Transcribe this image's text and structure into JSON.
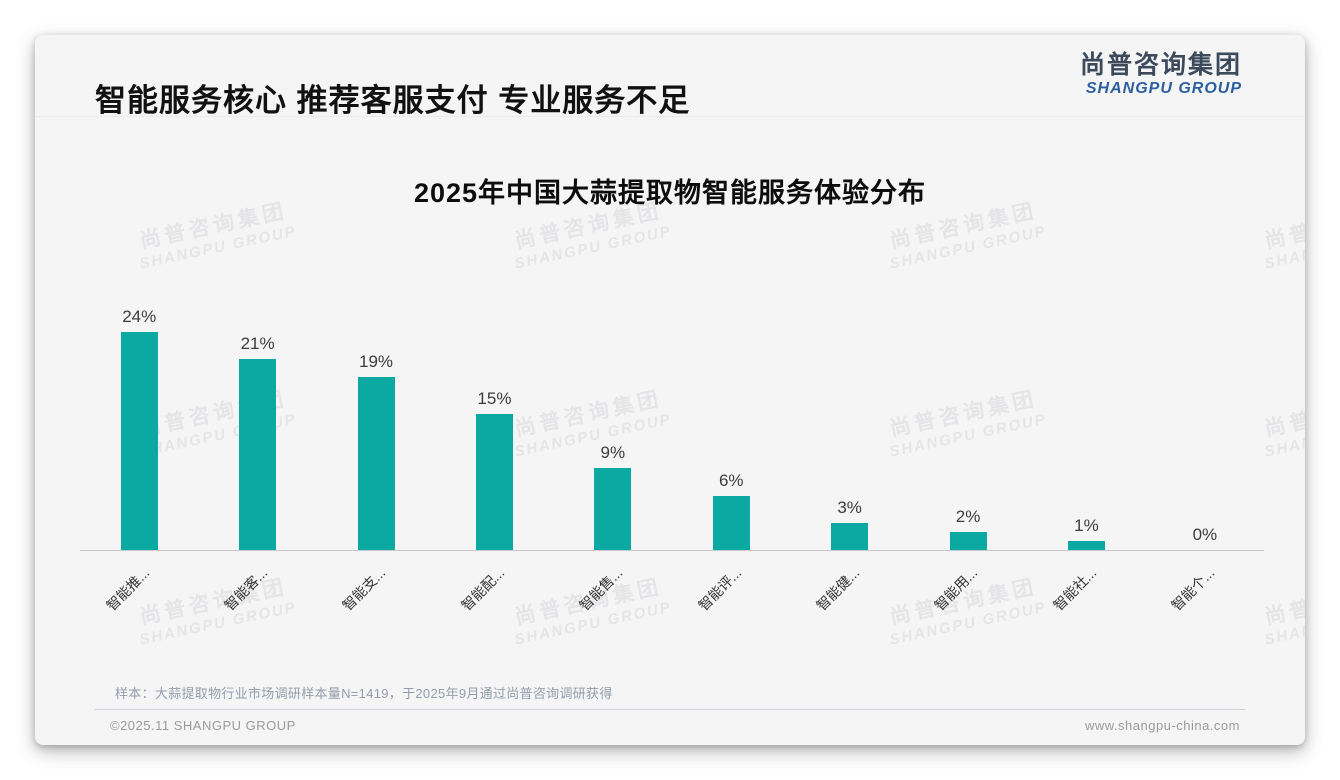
{
  "page": {
    "header": {
      "title": "智能服务核心 推荐客服支付 专业服务不足"
    },
    "logo": {
      "cn": "尚普咨询集团",
      "en": "SHANGPU GROUP",
      "cn_color": "#3c4a5c",
      "en_color": "#2a5f9f"
    },
    "watermark": {
      "cn": "尚普咨询集团",
      "en": "SHANGPU GROUP"
    },
    "note": "样本：大蒜提取物行业市场调研样本量N=1419，于2025年9月通过尚普咨询调研获得",
    "footer": {
      "left": "©2025.11 SHANGPU GROUP",
      "right": "www.shangpu-china.com"
    }
  },
  "chart_data": {
    "type": "bar",
    "title": "2025年中国大蒜提取物智能服务体验分布",
    "categories": [
      "智能推...",
      "智能客...",
      "智能支...",
      "智能配...",
      "智能售...",
      "智能评...",
      "智能健...",
      "智能用...",
      "智能社...",
      "智能个..."
    ],
    "values": [
      24,
      21,
      19,
      15,
      9,
      6,
      3,
      2,
      1,
      0
    ],
    "data_labels": [
      "24%",
      "21%",
      "19%",
      "15%",
      "9%",
      "6%",
      "3%",
      "2%",
      "1%",
      "0%"
    ],
    "unit": "%",
    "bar_color": "#0ca9a2",
    "axis_color": "#c9c9c9",
    "ylim": [
      0,
      26
    ],
    "grid": false,
    "legend": "none",
    "xlabel": "",
    "ylabel": ""
  }
}
